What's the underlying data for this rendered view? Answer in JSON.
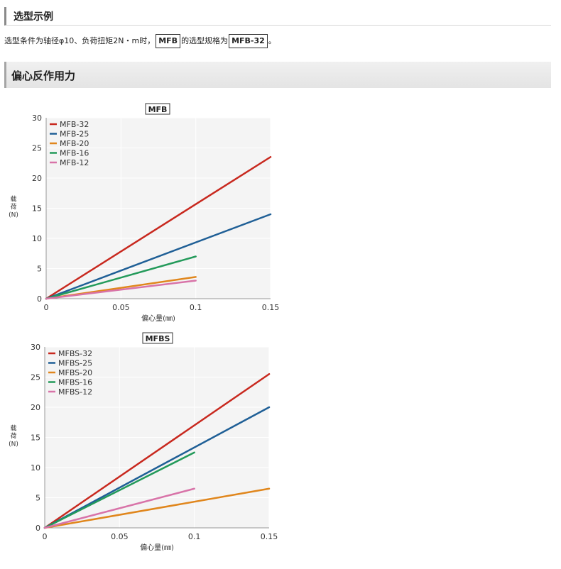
{
  "section_title": "选型示例",
  "example": {
    "text_before": "选型条件为轴径φ10、负荷扭矩2N・m时，",
    "series_box": "MFB",
    "text_middle": "的选型规格为",
    "model_box": "MFB-32",
    "text_end": "。"
  },
  "chart_section_title": "偏心反作用力",
  "colors": {
    "red": "#c8281e",
    "blue": "#1f5f96",
    "orange": "#e0861c",
    "green": "#239a5a",
    "pink": "#d873a8"
  },
  "chart_data": [
    {
      "type": "line",
      "title": "MFB",
      "xlabel": "偏心量(㎜)",
      "ylabel_lines": [
        "载",
        "荷",
        "(N)"
      ],
      "xlim": [
        0,
        0.15
      ],
      "ylim": [
        0,
        30
      ],
      "xticks": [
        "0",
        "0.05",
        "0.1",
        "0.15"
      ],
      "yticks": [
        "0",
        "5",
        "10",
        "15",
        "20",
        "25",
        "30"
      ],
      "legend_position": "top-left",
      "series": [
        {
          "name": "MFB-32",
          "color": "#c8281e",
          "x": [
            0,
            0.15
          ],
          "y": [
            0,
            23.5
          ]
        },
        {
          "name": "MFB-25",
          "color": "#1f5f96",
          "x": [
            0,
            0.15
          ],
          "y": [
            0,
            14
          ]
        },
        {
          "name": "MFB-20",
          "color": "#e0861c",
          "x": [
            0,
            0.1
          ],
          "y": [
            0,
            3.6
          ]
        },
        {
          "name": "MFB-16",
          "color": "#239a5a",
          "x": [
            0,
            0.1
          ],
          "y": [
            0,
            7
          ]
        },
        {
          "name": "MFB-12",
          "color": "#d873a8",
          "x": [
            0,
            0.1
          ],
          "y": [
            0,
            3
          ]
        }
      ]
    },
    {
      "type": "line",
      "title": "MFBS",
      "xlabel": "偏心量(㎜)",
      "ylabel_lines": [
        "载",
        "荷",
        "(N)"
      ],
      "xlim": [
        0,
        0.15
      ],
      "ylim": [
        0,
        30
      ],
      "xticks": [
        "0",
        "0.05",
        "0.1",
        "0.15"
      ],
      "yticks": [
        "0",
        "5",
        "10",
        "15",
        "20",
        "25",
        "30"
      ],
      "legend_position": "top-left",
      "series": [
        {
          "name": "MFBS-32",
          "color": "#c8281e",
          "x": [
            0,
            0.15
          ],
          "y": [
            0,
            25.5
          ]
        },
        {
          "name": "MFBS-25",
          "color": "#1f5f96",
          "x": [
            0,
            0.15
          ],
          "y": [
            0,
            20
          ]
        },
        {
          "name": "MFBS-20",
          "color": "#e0861c",
          "x": [
            0,
            0.15
          ],
          "y": [
            0,
            6.5
          ]
        },
        {
          "name": "MFBS-16",
          "color": "#239a5a",
          "x": [
            0,
            0.1
          ],
          "y": [
            0,
            12.5
          ]
        },
        {
          "name": "MFBS-12",
          "color": "#d873a8",
          "x": [
            0,
            0.1
          ],
          "y": [
            0,
            6.5
          ]
        }
      ]
    }
  ]
}
